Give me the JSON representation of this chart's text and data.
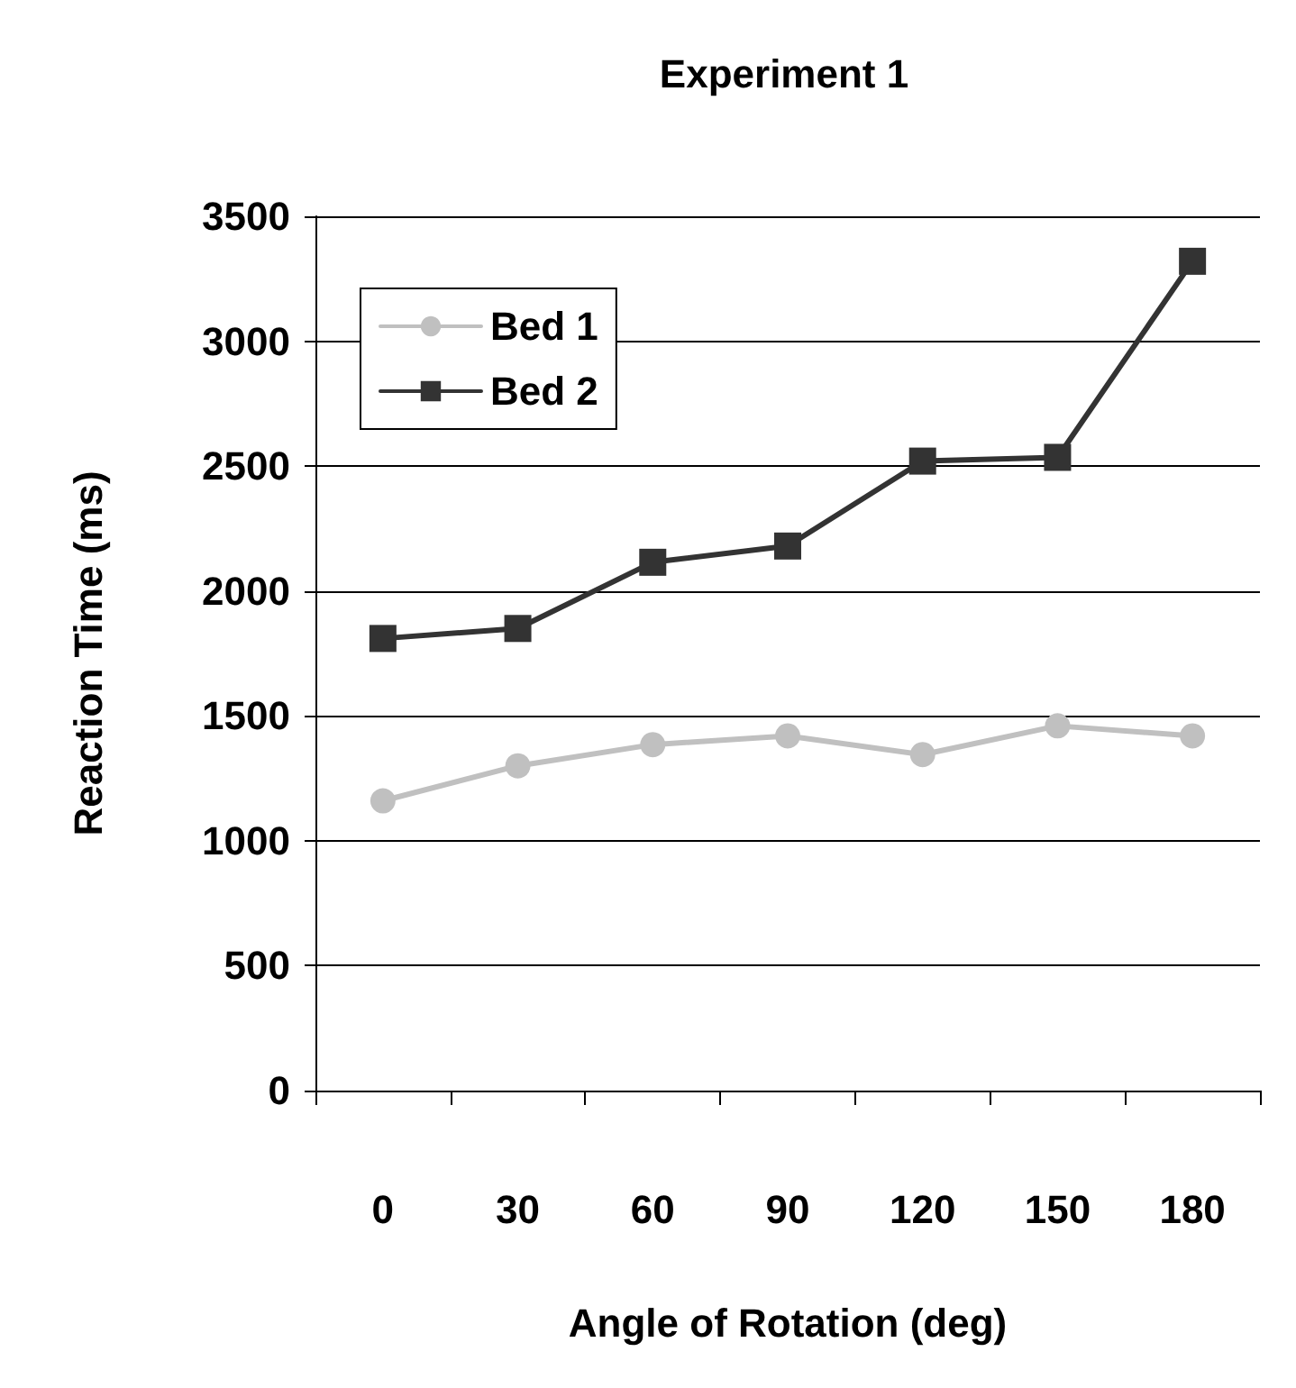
{
  "chart_data": {
    "type": "line",
    "title": "Experiment 1",
    "xlabel": "Angle of Rotation (deg)",
    "ylabel": "Reaction Time (ms)",
    "categories": [
      "0",
      "30",
      "60",
      "90",
      "120",
      "150",
      "180"
    ],
    "series": [
      {
        "name": "Bed 1",
        "color": "#c0c0c0",
        "marker": "circle",
        "values": [
          1160,
          1300,
          1385,
          1420,
          1345,
          1460,
          1420
        ]
      },
      {
        "name": "Bed 2",
        "color": "#333333",
        "marker": "square",
        "values": [
          1810,
          1850,
          2115,
          2180,
          2520,
          2535,
          3320
        ]
      }
    ],
    "ylim": [
      0,
      3500
    ],
    "yticks": [
      0,
      500,
      1000,
      1500,
      2000,
      2500,
      3000,
      3500
    ],
    "grid": "y",
    "legend": "top left"
  }
}
